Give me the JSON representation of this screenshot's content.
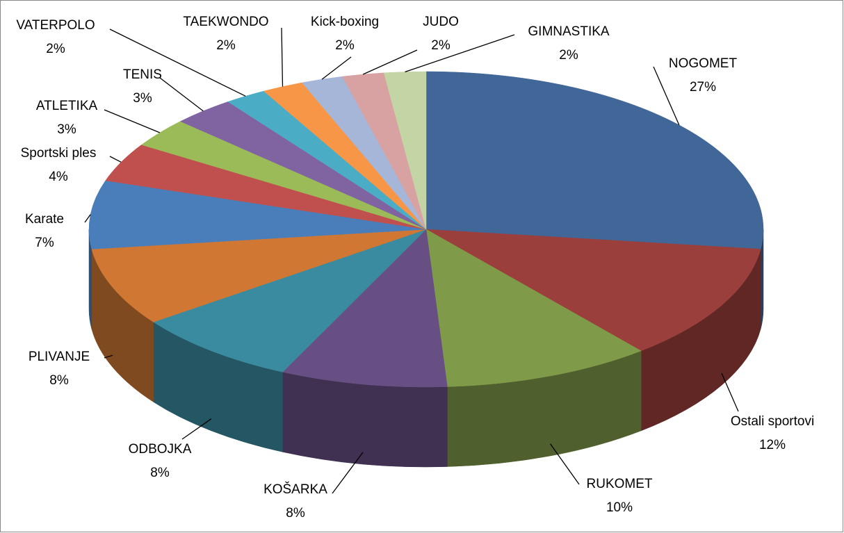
{
  "chart_data": {
    "type": "pie3d",
    "categories": [
      "NOGOMET",
      "Ostali sportovi",
      "RUKOMET",
      "KOŠARKA",
      "ODBOJKA",
      "PLIVANJE",
      "Karate",
      "Sportski ples",
      "ATLETIKA",
      "TENIS",
      "VATERPOLO",
      "TAEKWONDO",
      "Kick-boxing",
      "JUDO",
      "GIMNASTIKA"
    ],
    "values": [
      27,
      12,
      10,
      8,
      8,
      8,
      7,
      4,
      3,
      3,
      2,
      2,
      2,
      2,
      2
    ],
    "value_labels": [
      "27%",
      "12%",
      "10%",
      "8%",
      "8%",
      "8%",
      "7%",
      "4%",
      "3%",
      "3%",
      "2%",
      "2%",
      "2%",
      "2%",
      "2%"
    ],
    "colors": [
      "#416698",
      "#9b3f3c",
      "#7f9a48",
      "#674f84",
      "#3a8ba0",
      "#cf7733",
      "#4a7ebb",
      "#c0504d",
      "#9bbb59",
      "#8064a2",
      "#4bacc6",
      "#f79646",
      "#a5b6d9",
      "#d8a2a3",
      "#c3d5a4"
    ]
  }
}
